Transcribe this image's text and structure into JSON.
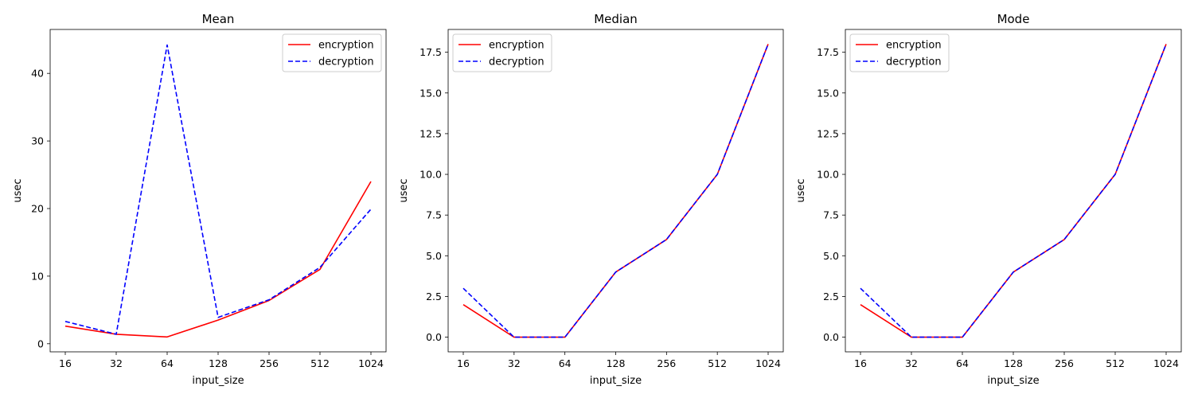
{
  "chart_data": [
    {
      "type": "line",
      "title": "Mean",
      "xlabel": "input_size",
      "ylabel": "usec",
      "x": [
        "16",
        "32",
        "64",
        "128",
        "256",
        "512",
        "1024"
      ],
      "ylim": [
        -1.2,
        46.5
      ],
      "yticks": [
        "0",
        "10",
        "20",
        "30",
        "40"
      ],
      "ytick_values": [
        0,
        10,
        20,
        30,
        40
      ],
      "legend_position": "top-right",
      "series": [
        {
          "name": "encryption",
          "color": "#ff0000",
          "dash": "solid",
          "values": [
            2.6,
            1.4,
            1.0,
            3.5,
            6.4,
            11.0,
            24.0
          ]
        },
        {
          "name": "decryption",
          "color": "#0000ff",
          "dash": "dashed",
          "values": [
            3.3,
            1.4,
            44.2,
            3.9,
            6.5,
            11.3,
            19.9
          ]
        }
      ]
    },
    {
      "type": "line",
      "title": "Median",
      "xlabel": "input_size",
      "ylabel": "usec",
      "x": [
        "16",
        "32",
        "64",
        "128",
        "256",
        "512",
        "1024"
      ],
      "ylim": [
        -0.9,
        18.9
      ],
      "yticks": [
        "0.0",
        "2.5",
        "5.0",
        "7.5",
        "10.0",
        "12.5",
        "15.0",
        "17.5"
      ],
      "ytick_values": [
        0,
        2.5,
        5,
        7.5,
        10,
        12.5,
        15,
        17.5
      ],
      "legend_position": "top-left",
      "series": [
        {
          "name": "encryption",
          "color": "#ff0000",
          "dash": "solid",
          "values": [
            2,
            0,
            0,
            4,
            6,
            10,
            18
          ]
        },
        {
          "name": "decryption",
          "color": "#0000ff",
          "dash": "dashed",
          "values": [
            3,
            0,
            0,
            4,
            6,
            10,
            18
          ]
        }
      ]
    },
    {
      "type": "line",
      "title": "Mode",
      "xlabel": "input_size",
      "ylabel": "usec",
      "x": [
        "16",
        "32",
        "64",
        "128",
        "256",
        "512",
        "1024"
      ],
      "ylim": [
        -0.9,
        18.9
      ],
      "yticks": [
        "0.0",
        "2.5",
        "5.0",
        "7.5",
        "10.0",
        "12.5",
        "15.0",
        "17.5"
      ],
      "ytick_values": [
        0,
        2.5,
        5,
        7.5,
        10,
        12.5,
        15,
        17.5
      ],
      "legend_position": "top-left",
      "series": [
        {
          "name": "encryption",
          "color": "#ff0000",
          "dash": "solid",
          "values": [
            2,
            0,
            0,
            4,
            6,
            10,
            18
          ]
        },
        {
          "name": "decryption",
          "color": "#0000ff",
          "dash": "dashed",
          "values": [
            3,
            0,
            0,
            4,
            6,
            10,
            18
          ]
        }
      ]
    }
  ]
}
